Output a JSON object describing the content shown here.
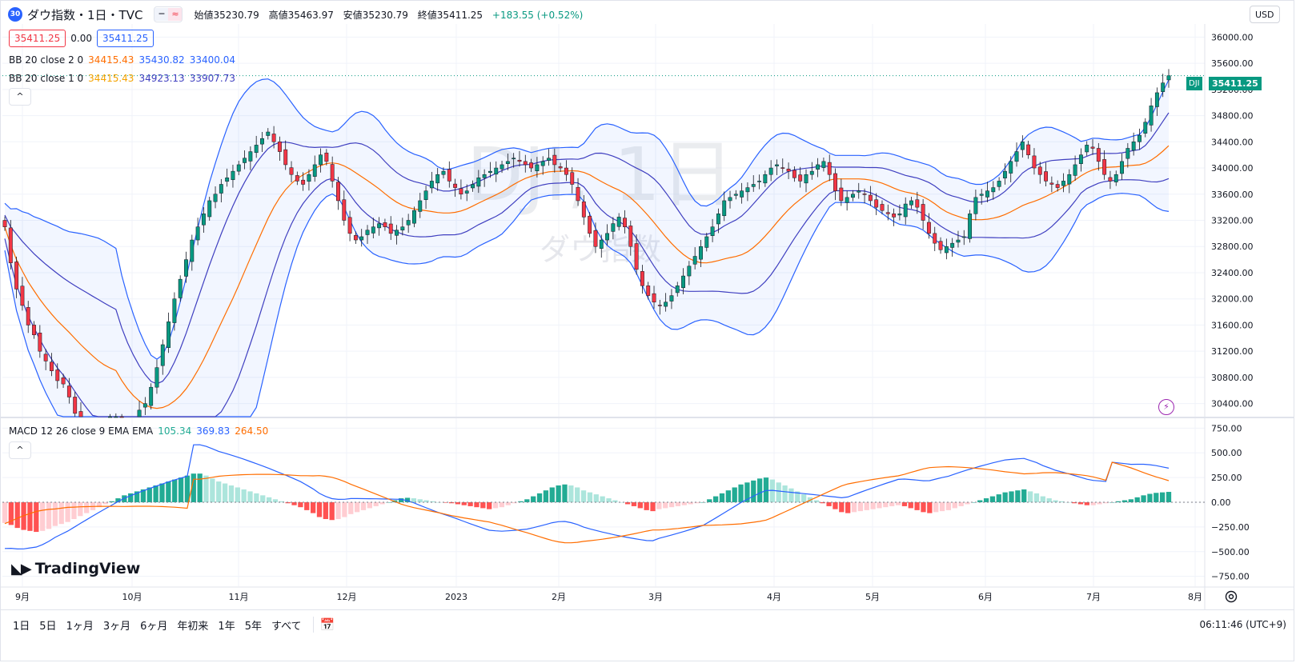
{
  "header": {
    "symbol_badge": "30",
    "title": "ダウ指数・1日・TVC",
    "ohlc": {
      "open_label": "始値",
      "open": "35230.79",
      "high_label": "高値",
      "high": "35463.97",
      "low_label": "安値",
      "low": "35230.79",
      "close_label": "終値",
      "close": "35411.25",
      "change": "+183.55 (+0.52%)"
    },
    "currency": "USD"
  },
  "price_boxes": {
    "bid": "35411.25",
    "spread": "0.00",
    "ask": "35411.25"
  },
  "indicators": {
    "bb2": {
      "label": "BB 20 close 2 0",
      "basis": "34415.43",
      "upper": "35430.82",
      "lower": "33400.04"
    },
    "bb1": {
      "label": "BB 20 close 1 0",
      "basis": "34415.43",
      "upper": "34923.13",
      "lower": "33907.73"
    },
    "macd": {
      "label": "MACD 12 26 close 9 EMA EMA",
      "hist": "105.34",
      "macd": "369.83",
      "signal": "264.50"
    }
  },
  "watermark": {
    "big": "DJI, 1日",
    "small": "ダウ指数"
  },
  "price_axis": [
    "36000.00",
    "35600.00",
    "35200.00",
    "34800.00",
    "34400.00",
    "34000.00",
    "33600.00",
    "33200.00",
    "32800.00",
    "32400.00",
    "32000.00",
    "31600.00",
    "31200.00",
    "30800.00",
    "30400.00"
  ],
  "last_price_tag": {
    "symbol": "DJI",
    "price": "35411.25"
  },
  "macd_axis": [
    "750.00",
    "500.00",
    "250.00",
    "0.00",
    "−250.00",
    "−500.00",
    "−750.00"
  ],
  "time_axis": [
    "9月",
    "10月",
    "11月",
    "12月",
    "2023",
    "2月",
    "3月",
    "4月",
    "5月",
    "6月",
    "7月",
    "8月"
  ],
  "logo": "TradingView",
  "bottom_bar": {
    "ranges": [
      "1日",
      "5日",
      "1ヶ月",
      "3ヶ月",
      "6ヶ月",
      "年初来",
      "1年",
      "5年",
      "すべて"
    ],
    "time": "06:11:46 (UTC+9)"
  },
  "colors": {
    "up": "#089981",
    "down": "#f23645",
    "bb_band": "#2962ff",
    "bb_basis": "#ff6d00",
    "macd": "#2962ff",
    "signal": "#ff6d00",
    "hist_up": "#22ab94",
    "hist_up_light": "#ace5dc",
    "hist_down": "#ff5252",
    "hist_down_light": "#ffcdd2"
  },
  "chart_data": {
    "type": "candlestick",
    "price_ylim": [
      30200,
      36200
    ],
    "macd_ylim": [
      -850,
      850
    ],
    "close_path": [
      33100,
      32550,
      32150,
      31900,
      31600,
      31450,
      31200,
      31050,
      30900,
      30750,
      30700,
      30500,
      30250,
      30100,
      30000,
      29900,
      29800,
      29950,
      30100,
      30150,
      30050,
      29950,
      30100,
      30300,
      30400,
      30650,
      30950,
      31300,
      31650,
      32000,
      32300,
      32600,
      32900,
      33100,
      33300,
      33500,
      33600,
      33750,
      33850,
      33950,
      34050,
      34150,
      34250,
      34350,
      34450,
      34550,
      34400,
      34250,
      34050,
      33900,
      33800,
      33750,
      33900,
      34050,
      34200,
      34100,
      33800,
      33500,
      33200,
      33000,
      32900,
      32950,
      33050,
      33100,
      33150,
      33100,
      33000,
      33050,
      33100,
      33200,
      33350,
      33500,
      33650,
      33800,
      33900,
      33950,
      33800,
      33700,
      33600,
      33650,
      33750,
      33850,
      33900,
      33950,
      34000,
      34050,
      34100,
      34150,
      34100,
      34050,
      34000,
      34050,
      34100,
      34150,
      34050,
      34000,
      33900,
      33750,
      33500,
      33250,
      33000,
      32800,
      32900,
      33000,
      33150,
      33250,
      33100,
      32800,
      32450,
      32200,
      32050,
      31950,
      31900,
      31950,
      32050,
      32200,
      32350,
      32500,
      32650,
      32800,
      32950,
      33100,
      33300,
      33500,
      33550,
      33600,
      33650,
      33700,
      33750,
      33800,
      33900,
      34000,
      34050,
      34000,
      33950,
      33850,
      33800,
      33900,
      33950,
      34050,
      34100,
      33900,
      33650,
      33500,
      33550,
      33600,
      33650,
      33600,
      33500,
      33400,
      33350,
      33300,
      33250,
      33300,
      33450,
      33500,
      33400,
      33200,
      33000,
      32850,
      32750,
      32800,
      32850,
      32900,
      32950,
      33300,
      33550,
      33600,
      33650,
      33700,
      33800,
      33950,
      34100,
      34250,
      34400,
      34200,
      34000,
      33900,
      33800,
      33750,
      33700,
      33800,
      33900,
      34050,
      34200,
      34350,
      34300,
      34100,
      33900,
      33800,
      33900,
      34100,
      34300,
      34400,
      34500,
      34700,
      34950,
      35150,
      35300,
      35411
    ],
    "hist_path": [
      -210,
      -230,
      -260,
      -280,
      -290,
      -300,
      -290,
      -270,
      -240,
      -220,
      -200,
      -170,
      -140,
      -110,
      -80,
      -50,
      -20,
      10,
      40,
      70,
      90,
      110,
      130,
      150,
      170,
      190,
      210,
      230,
      250,
      270,
      290,
      290,
      270,
      240,
      210,
      190,
      170,
      150,
      130,
      110,
      90,
      70,
      50,
      30,
      10,
      -10,
      -30,
      -50,
      -80,
      -110,
      -150,
      -170,
      -180,
      -170,
      -150,
      -120,
      -100,
      -80,
      -60,
      -40,
      -20,
      0,
      20,
      40,
      45,
      40,
      30,
      20,
      10,
      0,
      -5,
      -10,
      -20,
      -30,
      -40,
      -50,
      -60,
      -70,
      -60,
      -50,
      -30,
      -10,
      10,
      30,
      60,
      90,
      120,
      150,
      170,
      180,
      170,
      150,
      120,
      100,
      80,
      60,
      40,
      20,
      0,
      -20,
      -40,
      -60,
      -80,
      -90,
      -70,
      -60,
      -50,
      -40,
      -30,
      -20,
      -10,
      0,
      30,
      60,
      90,
      120,
      150,
      180,
      200,
      220,
      240,
      250,
      230,
      200,
      170,
      140,
      110,
      80,
      50,
      20,
      -10,
      -40,
      -70,
      -100,
      -110,
      -100,
      -90,
      -80,
      -70,
      -60,
      -50,
      -40,
      -30,
      -40,
      -60,
      -80,
      -100,
      -110,
      -100,
      -90,
      -80,
      -60,
      -40,
      -20,
      0,
      20,
      40,
      60,
      80,
      100,
      110,
      120,
      130,
      110,
      90,
      60,
      40,
      20,
      10,
      0,
      -10,
      -20,
      -30,
      -30,
      -20,
      -10,
      0,
      10,
      20,
      30,
      50,
      70,
      85,
      95,
      100,
      105
    ]
  }
}
